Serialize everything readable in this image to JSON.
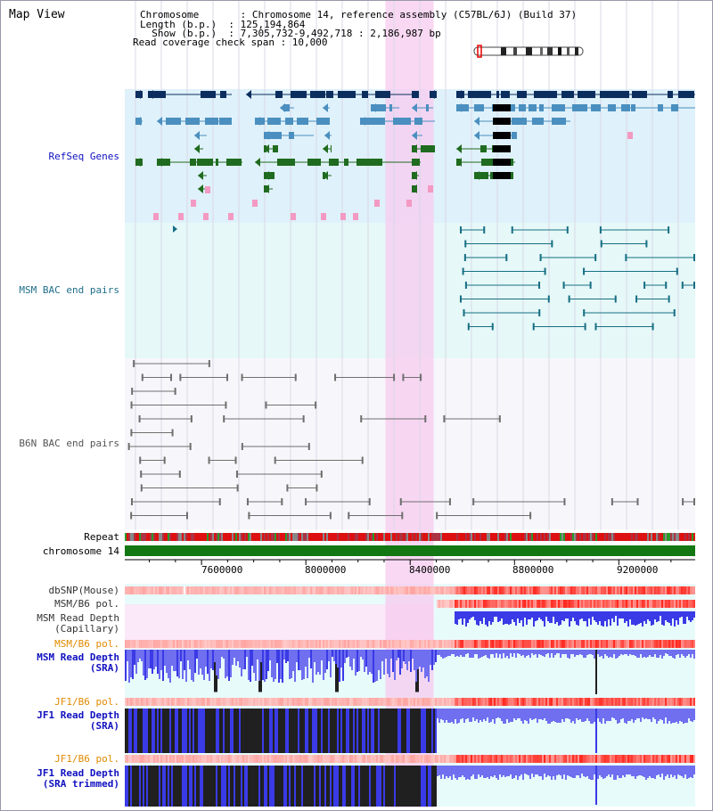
{
  "header": {
    "map_title": "Map View",
    "info_lines": [
      "Chromosome       : Chromosome 14, reference assembly (C57BL/6J) (Build 37)",
      "Length (b.p.)  : 125,194,864",
      "  Show (b.p.)  : 7,305,732-9,492,718 : 2,186,987 bp",
      "Read coverage check span : 10,000"
    ]
  },
  "view": {
    "start_bp": 7305732,
    "end_bp": 9492718,
    "highlight_start_bp": 8305000,
    "highlight_end_bp": 8490000
  },
  "tracks": {
    "refseq": "RefSeq Genes",
    "msm_bac": "MSM BAC end pairs",
    "b6n_bac": "B6N BAC end pairs",
    "repeat": "Repeat",
    "chromosome": "chromosome 14",
    "dbsnp": "dbSNP(Mouse)",
    "msm_b6_pol_1": "MSM/B6 pol.",
    "msm_depth_cap": "MSM Read Depth\n(Capillary)",
    "msm_b6_pol_2": "MSM/B6 pol.",
    "msm_depth_sra": "MSM Read Depth\n(SRA)",
    "jf1_b6_pol_1": "JF1/B6 pol.",
    "jf1_depth_sra": "JF1 Read Depth\n(SRA)",
    "jf1_b6_pol_2": "JF1/B6 pol.",
    "jf1_depth_trim": "JF1 Read Depth\n(SRA trimmed)"
  },
  "axis_ticks": [
    "7600000",
    "8000000",
    "8400000",
    "8800000",
    "9200000"
  ],
  "colors": {
    "refseq_bg": "#dff1fa",
    "msm_bac_bg": "#e6f8f8",
    "b6n_bac_bg": "#f7f7fb",
    "highlight": "#f7cbef",
    "navy": "#0b2e5f",
    "steel": "#4a8fbf",
    "green": "#1f6b1f",
    "pink": "#f39ac2",
    "teal": "#176f84",
    "gray": "#6f6f6f",
    "chrom": "#137813",
    "depth_blue": "#3a3ae6",
    "depth_light": "#6f6ff0",
    "depth_black": "#202020",
    "label_blue": "#1010c0",
    "label_orange": "#e08a00",
    "label_teal": "#206f8a"
  }
}
